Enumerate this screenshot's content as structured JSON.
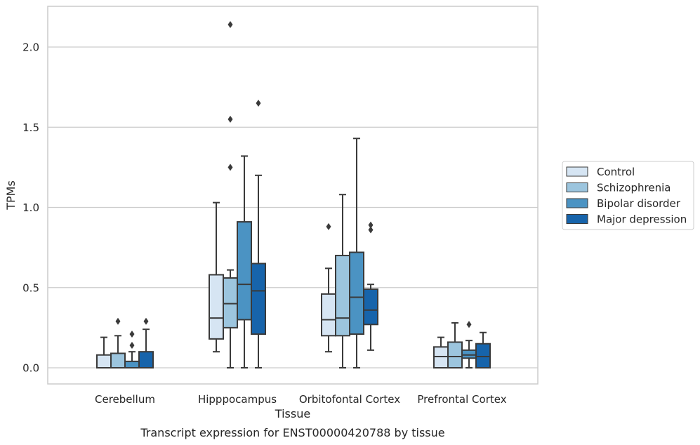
{
  "chart_data": {
    "type": "box",
    "caption": "Transcript expression for ENST00000420788 by tissue",
    "xlabel": "Tissue",
    "ylabel": "TPMs",
    "ylim": [
      -0.1,
      2.25
    ],
    "yticks": [
      0.0,
      0.5,
      1.0,
      1.5,
      2.0
    ],
    "ytick_labels": [
      "0.0",
      "0.5",
      "1.0",
      "1.5",
      "2.0"
    ],
    "grid": "horizontal",
    "legend_position": "right",
    "categories": [
      "Cerebellum",
      "Hipppocampus",
      "Orbitofontal Cortex",
      "Prefrontal Cortex"
    ],
    "series": [
      {
        "name": "Control",
        "color": "#d6e5f3",
        "boxes": [
          {
            "whislo": 0.0,
            "q1": 0.0,
            "med": 0.0,
            "q3": 0.08,
            "whishi": 0.19,
            "fliers": []
          },
          {
            "whislo": 0.1,
            "q1": 0.18,
            "med": 0.31,
            "q3": 0.58,
            "whishi": 1.03,
            "fliers": []
          },
          {
            "whislo": 0.1,
            "q1": 0.2,
            "med": 0.3,
            "q3": 0.46,
            "whishi": 0.62,
            "fliers": [
              0.88
            ]
          },
          {
            "whislo": 0.0,
            "q1": 0.0,
            "med": 0.07,
            "q3": 0.13,
            "whishi": 0.19,
            "fliers": []
          }
        ]
      },
      {
        "name": "Schizophrenia",
        "color": "#9cc5de",
        "boxes": [
          {
            "whislo": 0.0,
            "q1": 0.0,
            "med": 0.0,
            "q3": 0.09,
            "whishi": 0.2,
            "fliers": [
              0.29
            ]
          },
          {
            "whislo": 0.0,
            "q1": 0.25,
            "med": 0.4,
            "q3": 0.56,
            "whishi": 0.61,
            "fliers": [
              1.25,
              1.55,
              2.14
            ]
          },
          {
            "whislo": 0.0,
            "q1": 0.2,
            "med": 0.31,
            "q3": 0.7,
            "whishi": 1.08,
            "fliers": []
          },
          {
            "whislo": 0.0,
            "q1": 0.0,
            "med": 0.07,
            "q3": 0.16,
            "whishi": 0.28,
            "fliers": []
          }
        ]
      },
      {
        "name": "Bipolar disorder",
        "color": "#4b93c3",
        "boxes": [
          {
            "whislo": 0.0,
            "q1": 0.0,
            "med": 0.0,
            "q3": 0.04,
            "whishi": 0.1,
            "fliers": [
              0.14,
              0.21
            ]
          },
          {
            "whislo": 0.0,
            "q1": 0.3,
            "med": 0.52,
            "q3": 0.91,
            "whishi": 1.32,
            "fliers": []
          },
          {
            "whislo": 0.0,
            "q1": 0.21,
            "med": 0.44,
            "q3": 0.72,
            "whishi": 1.43,
            "fliers": []
          },
          {
            "whislo": 0.0,
            "q1": 0.06,
            "med": 0.08,
            "q3": 0.11,
            "whishi": 0.17,
            "fliers": [
              0.27
            ]
          }
        ]
      },
      {
        "name": "Major depression",
        "color": "#1764ab",
        "boxes": [
          {
            "whislo": 0.0,
            "q1": 0.0,
            "med": 0.0,
            "q3": 0.1,
            "whishi": 0.24,
            "fliers": [
              0.29
            ]
          },
          {
            "whislo": 0.0,
            "q1": 0.21,
            "med": 0.48,
            "q3": 0.65,
            "whishi": 1.2,
            "fliers": [
              1.65
            ]
          },
          {
            "whislo": 0.11,
            "q1": 0.27,
            "med": 0.36,
            "q3": 0.49,
            "whishi": 0.52,
            "fliers": [
              0.86,
              0.89
            ]
          },
          {
            "whislo": 0.0,
            "q1": 0.0,
            "med": 0.07,
            "q3": 0.15,
            "whishi": 0.22,
            "fliers": []
          }
        ]
      }
    ]
  }
}
